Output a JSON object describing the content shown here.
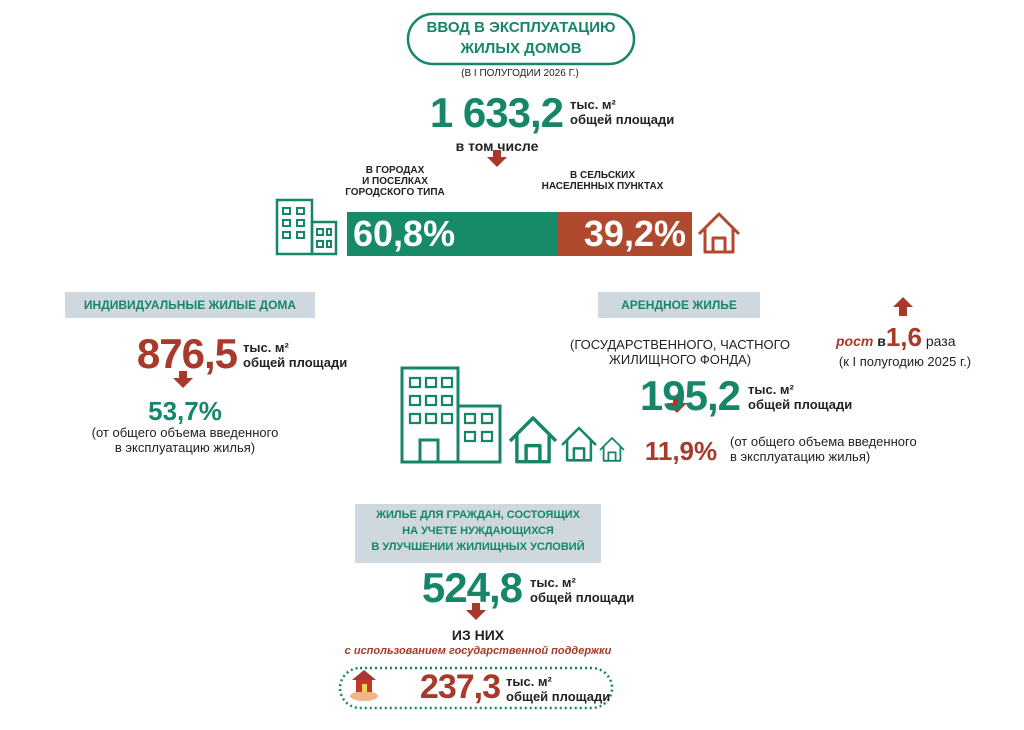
{
  "header": {
    "title_lines": [
      "ВВОД В ЭКСПЛУАТАЦИЮ",
      "ЖИЛЫХ ДОМОВ"
    ],
    "period": "(В I ПОЛУГОДИИ 2026 Г.)"
  },
  "total": {
    "value": "1 633,2",
    "unit": "тыс. м²",
    "unit_note": "общей площади",
    "note": "в том числе"
  },
  "split": {
    "labels": [
      [
        "В ГОРОДАХ",
        "И ПОСЕЛКАХ",
        "ГОРОДСКОГО ТИПА"
      ],
      [
        "В СЕЛЬСКИХ",
        "НАСЕЛЕННЫХ ПУНКТАХ"
      ]
    ],
    "values": [
      60.8,
      39.2
    ],
    "value_labels": [
      "60,8%",
      "39,2%"
    ],
    "colors": [
      "#178a6a",
      "#b04a2e"
    ]
  },
  "individual": {
    "title": "ИНДИВИДУАЛЬНЫЕ ЖИЛЫЕ ДОМА",
    "value": "876,5",
    "unit": "тыс. м²",
    "unit_note": "общей площади",
    "share": "53,7%",
    "share_note": [
      "(от общего объема введенного",
      "в эксплуатацию жилья)"
    ]
  },
  "rental": {
    "title": "АРЕНДНОЕ ЖИЛЬЕ",
    "subtitle": [
      "(ГОСУДАРСТВЕННОГО, ЧАСТНОГО",
      "ЖИЛИЩНОГО ФОНДА)"
    ],
    "value": "195,2",
    "unit": "тыс. м²",
    "unit_note": "общей площади",
    "share": "11,9%",
    "share_note": [
      "(от общего объема введенного",
      "в эксплуатацию жилья)"
    ],
    "growth": {
      "prefix": "рост",
      "mid": "в",
      "value": "1,6",
      "suffix": "раза",
      "note": "(к I полугодию 2025 г.)"
    }
  },
  "social": {
    "title": [
      "ЖИЛЬЕ ДЛЯ ГРАЖДАН, СОСТОЯЩИХ",
      "НА УЧЕТЕ НУЖДАЮЩИХСЯ",
      "В УЛУЧШЕНИИ ЖИЛИЩНЫХ УСЛОВИЙ"
    ],
    "value": "524,8",
    "unit": "тыс. м²",
    "unit_note": "общей площади",
    "subset_label": "ИЗ НИХ",
    "support_note": "с использованием государственной поддержки",
    "support_value": "237,3",
    "support_unit": "тыс. м²",
    "support_unit_note": "общей площади"
  }
}
